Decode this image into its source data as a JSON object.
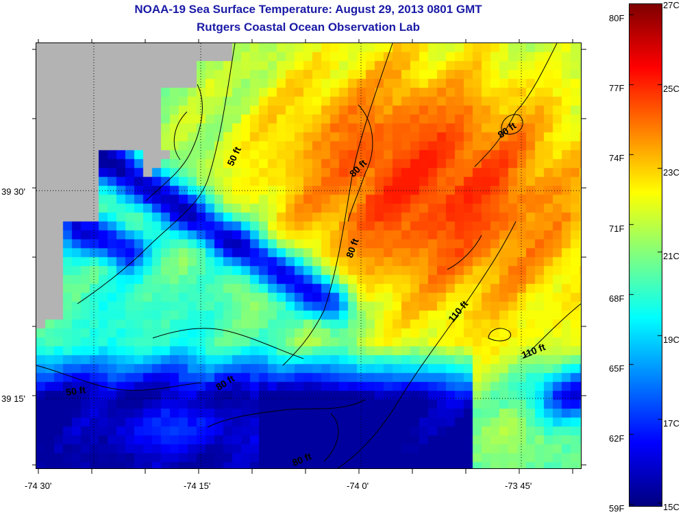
{
  "header": {
    "title": "NOAA-19 Sea Surface Temperature:  August 29, 2013 0801 GMT",
    "subtitle": "Rutgers Coastal Ocean Observation Lab"
  },
  "map": {
    "x_tick_labels": [
      "-74 30'",
      "-74 15'",
      "-74 0'",
      "-73 45'"
    ],
    "y_tick_labels": [
      "39 30'",
      "39 15'"
    ],
    "contour_labels": [
      "50 ft",
      "80 ft",
      "80 ft",
      "80 ft",
      "110 ft",
      "110 ft",
      "50 ft",
      "80 ft",
      "80 ft"
    ],
    "land_color": "#b3b3b3"
  },
  "colorbar": {
    "fahrenheit_labels": [
      "80F",
      "77F",
      "74F",
      "71F",
      "68F",
      "65F",
      "62F",
      "59F"
    ],
    "celsius_labels": [
      "27C",
      "25C",
      "23C",
      "21C",
      "19C",
      "17C",
      "15C"
    ],
    "colormap": "jet"
  }
}
